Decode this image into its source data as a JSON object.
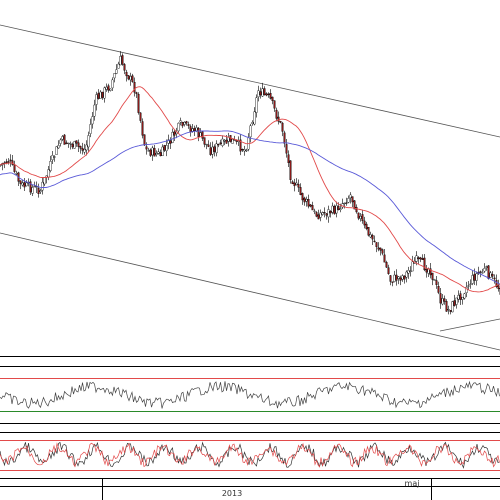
{
  "chart_data": [
    {
      "type": "candlestick",
      "panel": "price",
      "x_axis_labels": [
        "2013",
        "maj"
      ],
      "overlays": [
        {
          "kind": "moving-average",
          "color": "#e24a4a"
        },
        {
          "kind": "moving-average",
          "color": "#5a5ad8"
        },
        {
          "kind": "trend-channel",
          "color": "#555555"
        }
      ],
      "colors": {
        "up": "#ffffff",
        "down": "#8b1a1a",
        "wick": "#000000"
      }
    },
    {
      "type": "line",
      "panel": "oscillator-1",
      "reference_lines": [
        {
          "color": "#e24a4a"
        },
        {
          "color": "#2a8a2a"
        }
      ],
      "series_color": "#444444"
    },
    {
      "type": "line",
      "panel": "oscillator-2",
      "reference_lines": [
        {
          "color": "#e24a4a"
        },
        {
          "color": "#e24a4a"
        }
      ],
      "series_colors": [
        "#333333",
        "#e24a4a"
      ]
    }
  ]
}
